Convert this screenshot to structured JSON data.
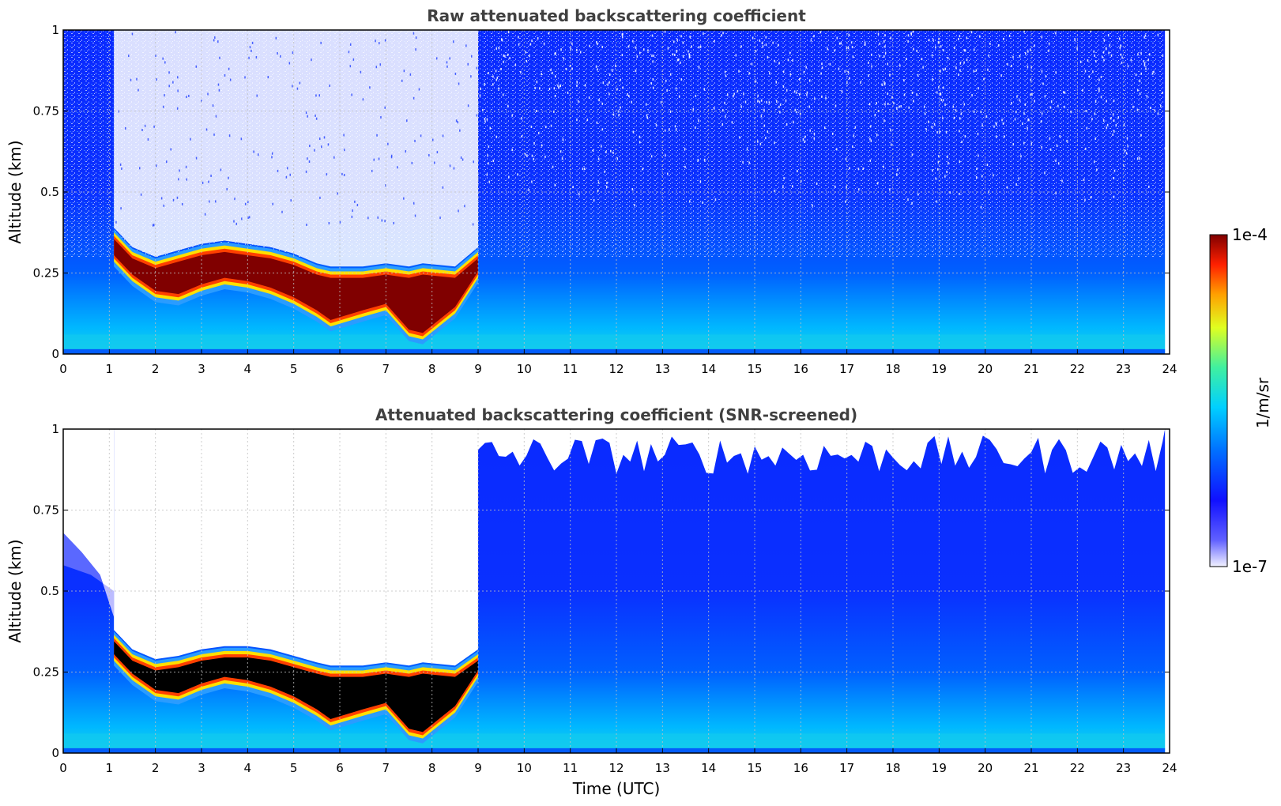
{
  "chart_data": [
    {
      "type": "heatmap",
      "title": "Raw attenuated backscattering coefficient",
      "xlabel": "",
      "ylabel": "Altitude (km)",
      "xlim": [
        0,
        24
      ],
      "ylim": [
        0,
        1
      ],
      "xticks": [
        "0",
        "1",
        "2",
        "3",
        "4",
        "5",
        "6",
        "7",
        "8",
        "9",
        "10",
        "11",
        "12",
        "13",
        "14",
        "15",
        "16",
        "17",
        "18",
        "19",
        "20",
        "21",
        "22",
        "23",
        "24"
      ],
      "yticks": [
        "0",
        "0.25",
        "0.5",
        "0.75",
        "1"
      ],
      "grid": true,
      "cloud_layer": {
        "time": [
          1.1,
          1.5,
          2.0,
          2.5,
          3.0,
          3.5,
          4.0,
          4.5,
          5.0,
          5.5,
          5.8,
          6.5,
          7.0,
          7.5,
          7.8,
          8.5,
          9.0
        ],
        "base_km": [
          0.3,
          0.24,
          0.19,
          0.18,
          0.21,
          0.23,
          0.22,
          0.2,
          0.17,
          0.13,
          0.1,
          0.13,
          0.15,
          0.07,
          0.06,
          0.14,
          0.25
        ],
        "top_km": [
          0.37,
          0.31,
          0.28,
          0.3,
          0.32,
          0.33,
          0.32,
          0.31,
          0.29,
          0.26,
          0.25,
          0.25,
          0.26,
          0.25,
          0.26,
          0.25,
          0.31
        ]
      }
    },
    {
      "type": "heatmap",
      "title": "Attenuated backscattering coefficient (SNR-screened)",
      "xlabel": "Time (UTC)",
      "ylabel": "Altitude (km)",
      "xlim": [
        0,
        24
      ],
      "ylim": [
        0,
        1
      ],
      "xticks": [
        "0",
        "1",
        "2",
        "3",
        "4",
        "5",
        "6",
        "7",
        "8",
        "9",
        "10",
        "11",
        "12",
        "13",
        "14",
        "15",
        "16",
        "17",
        "18",
        "19",
        "20",
        "21",
        "22",
        "23",
        "24"
      ],
      "yticks": [
        "0",
        "0.25",
        "0.5",
        "0.75",
        "1"
      ],
      "grid": true,
      "cloud_layer": {
        "time": [
          1.1,
          1.5,
          2.0,
          2.5,
          3.0,
          3.5,
          4.0,
          4.5,
          5.0,
          5.5,
          5.8,
          6.5,
          7.0,
          7.5,
          7.8,
          8.5,
          9.0
        ],
        "base_km": [
          0.3,
          0.24,
          0.19,
          0.18,
          0.21,
          0.23,
          0.22,
          0.2,
          0.17,
          0.13,
          0.1,
          0.13,
          0.15,
          0.07,
          0.06,
          0.14,
          0.25
        ],
        "top_km": [
          0.36,
          0.3,
          0.27,
          0.28,
          0.3,
          0.31,
          0.31,
          0.3,
          0.28,
          0.26,
          0.25,
          0.25,
          0.26,
          0.25,
          0.26,
          0.25,
          0.3
        ]
      }
    }
  ],
  "colorbar": {
    "label": "1/m/sr",
    "max_label": "1e-4",
    "min_label": "1e-7",
    "scale": "log",
    "range": [
      1e-07,
      0.0001
    ],
    "colors": [
      "#f0f0ff",
      "#1e1eff",
      "#00aaff",
      "#30e8c0",
      "#ffff00",
      "#ff5000",
      "#800000"
    ]
  }
}
